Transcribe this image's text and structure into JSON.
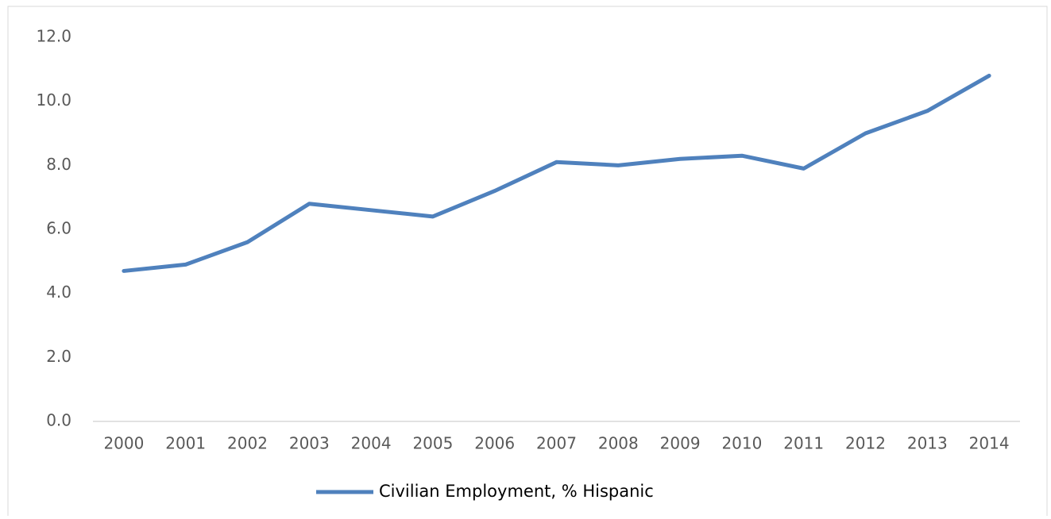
{
  "chart_data": {
    "type": "line",
    "categories": [
      "2000",
      "2001",
      "2002",
      "2003",
      "2004",
      "2005",
      "2006",
      "2007",
      "2008",
      "2009",
      "2010",
      "2011",
      "2012",
      "2013",
      "2014"
    ],
    "series": [
      {
        "name": "Civilian Employment, % Hispanic",
        "color": "#4f81bd",
        "values": [
          4.7,
          4.9,
          5.6,
          6.8,
          6.6,
          6.4,
          7.2,
          8.1,
          8.0,
          8.2,
          8.3,
          7.9,
          9.0,
          9.7,
          10.8
        ]
      }
    ],
    "ylim": [
      0,
      12
    ],
    "yticks": [
      {
        "value": 0,
        "label": "0.0"
      },
      {
        "value": 2,
        "label": "2.0"
      },
      {
        "value": 4,
        "label": "4.0"
      },
      {
        "value": 6,
        "label": "6.0"
      },
      {
        "value": 8,
        "label": "8.0"
      },
      {
        "value": 10,
        "label": "10.0"
      },
      {
        "value": 12,
        "label": "12.0"
      }
    ],
    "grid": false,
    "legend": "bottom"
  }
}
